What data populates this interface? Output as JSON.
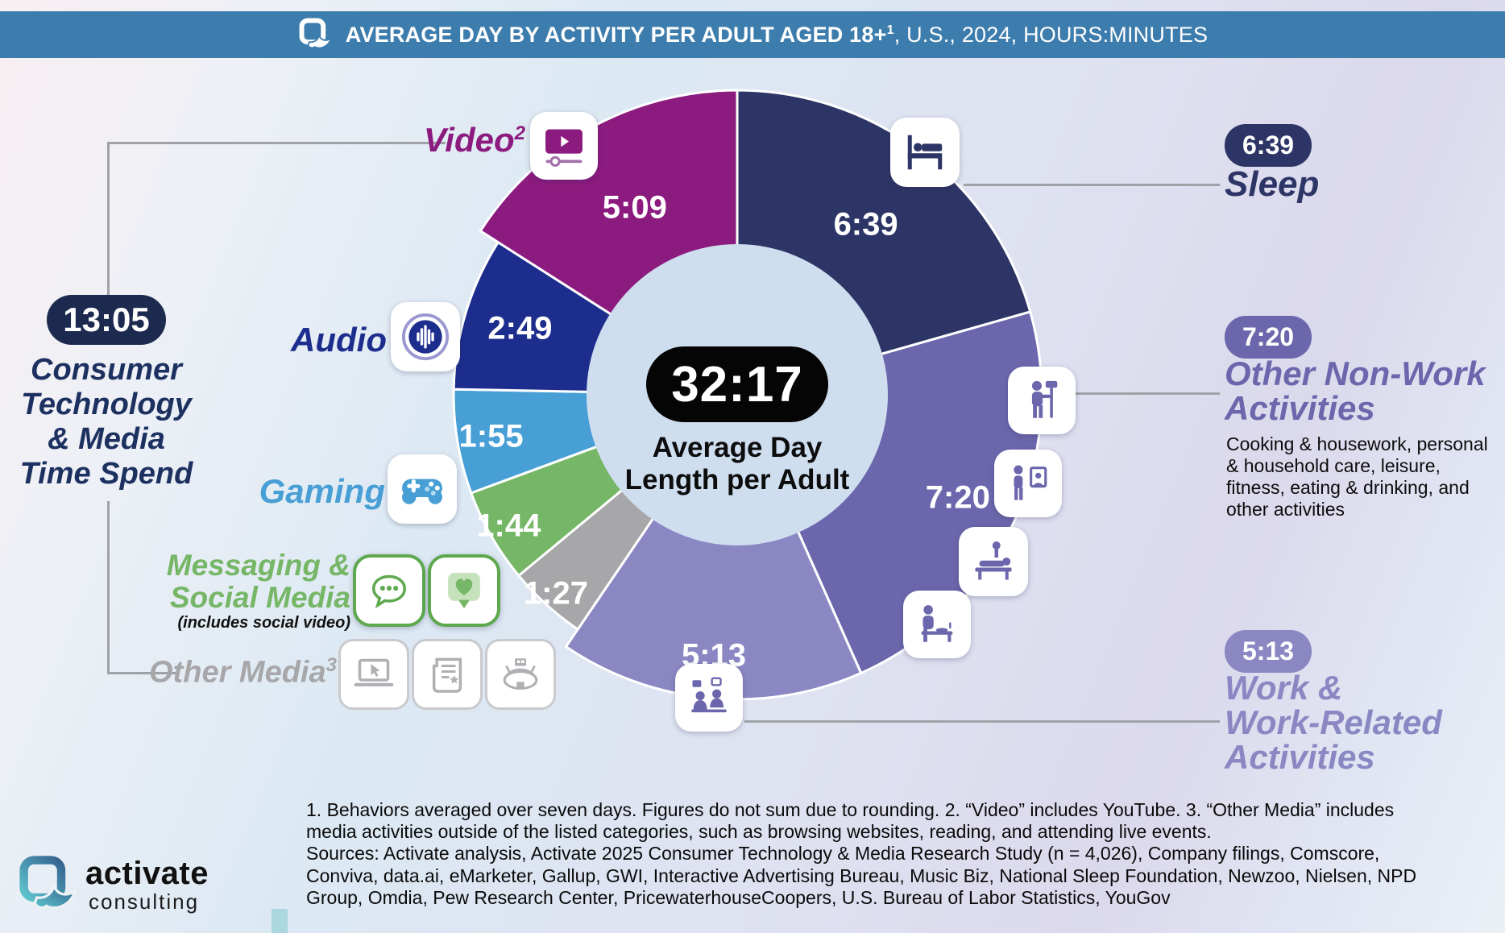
{
  "header": {
    "title_bold": "AVERAGE DAY BY ACTIVITY PER ADULT AGED 18+",
    "title_sup": "1",
    "title_rest": ", U.S., 2024, HOURS:MINUTES"
  },
  "center": {
    "total": "32:17",
    "label": "Average Day\nLength per Adult"
  },
  "left_group": {
    "total": "13:05",
    "label": "Consumer\nTechnology\n& Media\nTime Spend"
  },
  "chart_data": {
    "type": "pie",
    "title": "Average Day by Activity per Adult Aged 18+, U.S., 2024, Hours:Minutes",
    "units": "hours:minutes",
    "center_total": "32:17",
    "center_label": "Average Day Length per Adult",
    "group_note": "Consumer Technology & Media Time Spend totals 13:05 (Video, Audio, Gaming, Messaging & Social Media, Other Media)",
    "segments": [
      {
        "id": "sleep",
        "label": "Sleep",
        "time": "6:39",
        "minutes": 399,
        "color": "#2d3566",
        "radius": 378
      },
      {
        "id": "other-non-work",
        "label": "Other Non-Work Activities",
        "time": "7:20",
        "minutes": 440,
        "color": "#6c67ac",
        "radius": 378
      },
      {
        "id": "work",
        "label": "Work & Work-Related Activities",
        "time": "5:13",
        "minutes": 313,
        "color": "#8b87c3",
        "radius": 378
      },
      {
        "id": "other-media",
        "label": "Other Media",
        "time": "1:27",
        "minutes": 87,
        "color": "#a7a7aa",
        "radius": 352
      },
      {
        "id": "messaging-social",
        "label": "Messaging & Social Media",
        "time": "1:44",
        "minutes": 104,
        "color": "#76b667",
        "radius": 352
      },
      {
        "id": "gaming",
        "label": "Gaming",
        "time": "1:55",
        "minutes": 115,
        "color": "#479fd6",
        "radius": 352
      },
      {
        "id": "audio",
        "label": "Audio",
        "time": "2:49",
        "minutes": 169,
        "color": "#1d2d8d",
        "radius": 352
      },
      {
        "id": "video",
        "label": "Video",
        "time": "5:09",
        "minutes": 309,
        "color": "#8c1b7f",
        "radius": 378
      }
    ]
  },
  "labels": {
    "video": {
      "text": "Video",
      "sup": "2"
    },
    "audio": "Audio",
    "gaming": "Gaming",
    "messaging_line1": "Messaging &",
    "messaging_line2": "Social Media",
    "messaging_note": "(includes social video)",
    "other_media": {
      "text": "Other Media",
      "sup": "3"
    }
  },
  "right": {
    "sleep_label": "Sleep",
    "onw_label": "Other Non-Work\nActivities",
    "onw_desc": "Cooking & housework, personal\n& household care, leisure,\nfitness, eating & drinking, and\nother activities",
    "work_label": "Work &\nWork-Related\nActivities"
  },
  "footnotes": {
    "text": "1. Behaviors averaged over seven days. Figures do not sum due to rounding.  2. “Video” includes YouTube.  3. “Other Media” includes\nmedia activities outside of the listed categories, such as browsing websites, reading, and attending live events.\nSources: Activate analysis, Activate 2025 Consumer Technology & Media Research Study (n = 4,026), Company filings, Comscore,\nConviva, data.ai, eMarketer, Gallup, GWI, Interactive Advertising Bureau, Music Biz, National Sleep Foundation, Newzoo, Nielsen, NPD\nGroup, Omdia, Pew Research Center, PricewaterhouseCoopers, U.S. Bureau of Labor Statistics, YouGov"
  },
  "footer": {
    "brand": "activate",
    "brand_sub": "consulting"
  },
  "colors": {
    "header_bg": "#3d7dad",
    "donut_hole": "#cfdeef",
    "group_pill": "#1d2a50",
    "group_text": "#1d3160",
    "connector_line": "#9fa3a8"
  },
  "icons": [
    "activate-logo-icon",
    "video-player-icon",
    "audio-waveform-icon",
    "gamepad-icon",
    "chat-bubble-icon",
    "heart-like-icon",
    "laptop-cursor-icon",
    "newspaper-icon",
    "stadium-icon",
    "bed-sleep-icon",
    "cleaning-person-icon",
    "mirror-person-icon",
    "massage-icon",
    "dining-icon",
    "meeting-icon"
  ]
}
